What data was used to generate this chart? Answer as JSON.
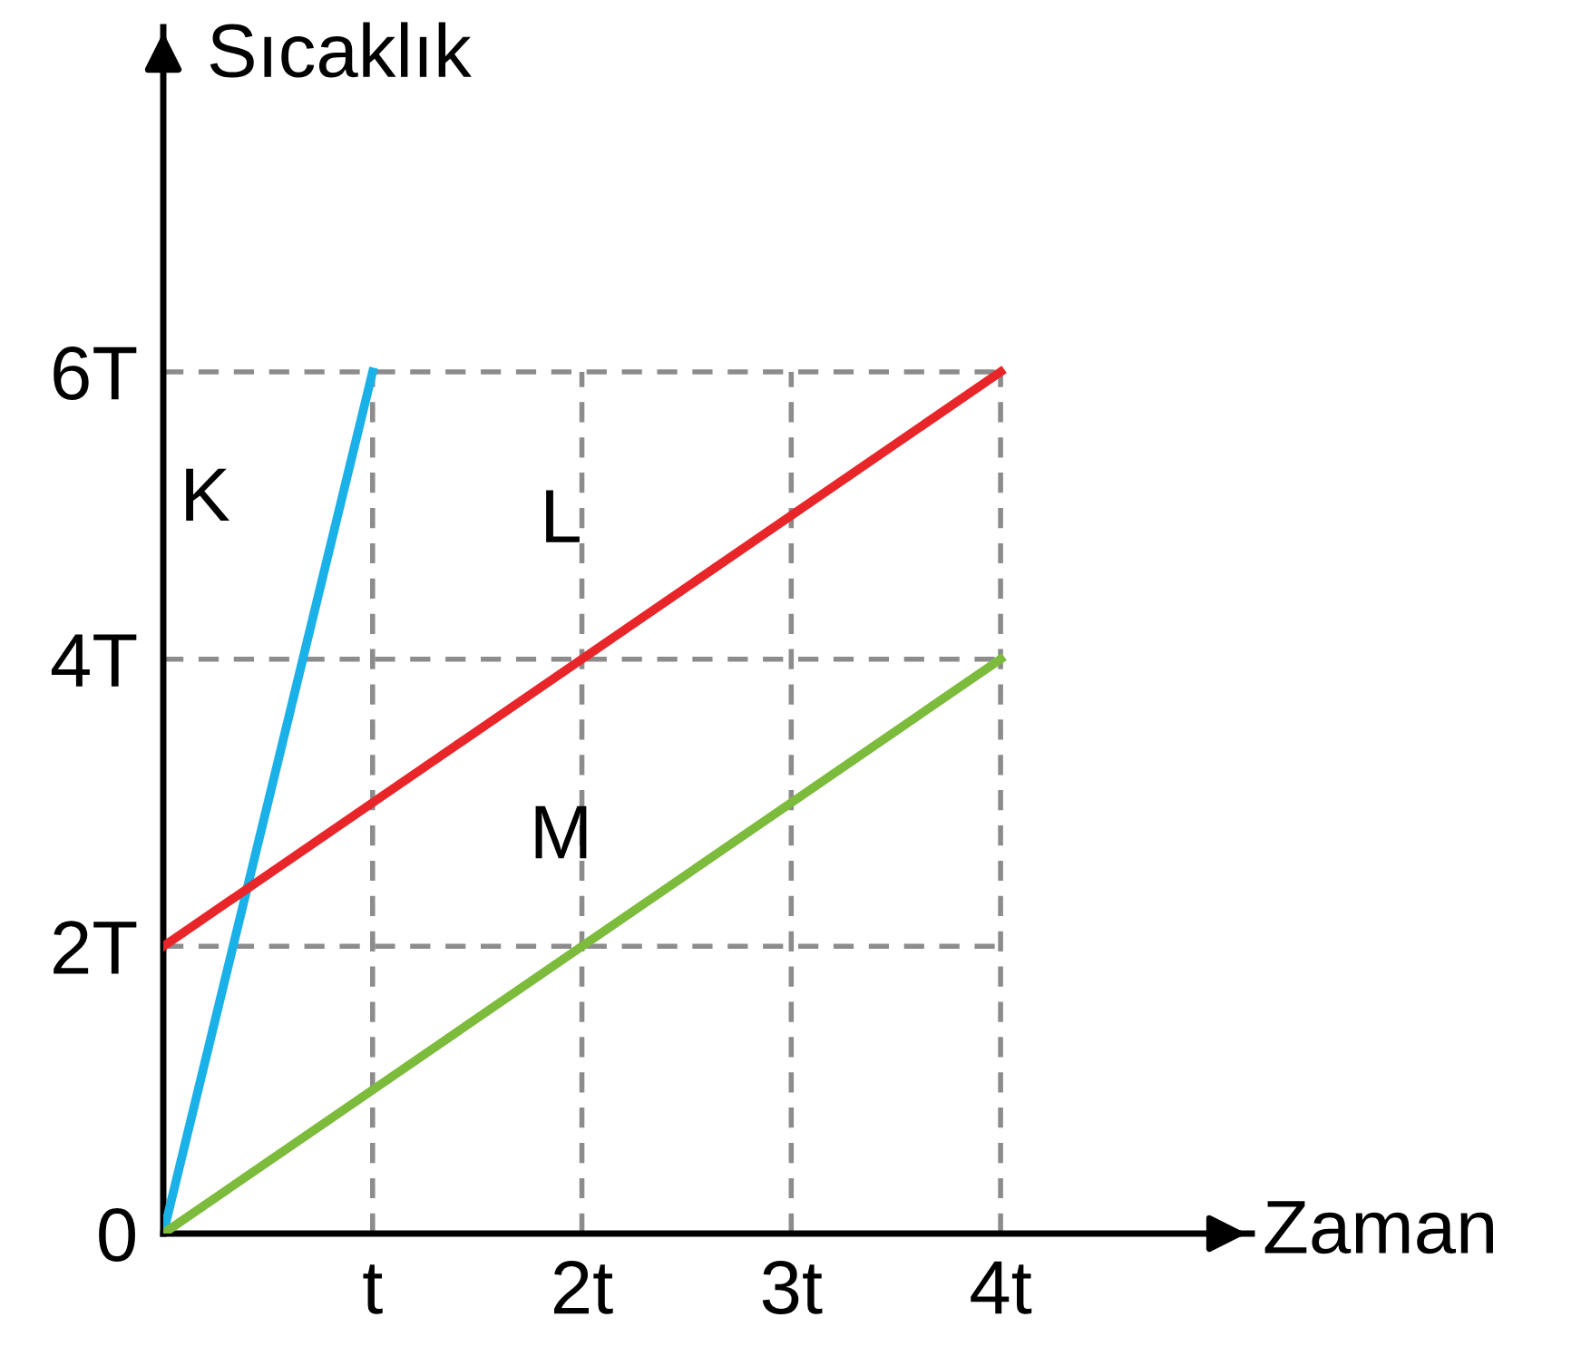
{
  "chart_data": {
    "type": "line",
    "xlabel": "Zaman",
    "ylabel": "Sıcaklık",
    "xlim": [
      0,
      5.2
    ],
    "ylim": [
      0,
      8.4
    ],
    "xticks": [
      {
        "value": 1,
        "label": "t"
      },
      {
        "value": 2,
        "label": "2t"
      },
      {
        "value": 3,
        "label": "3t"
      },
      {
        "value": 4,
        "label": "4t"
      }
    ],
    "yticks": [
      0,
      {
        "value": 2,
        "label": "2T"
      },
      {
        "value": 4,
        "label": "4T"
      },
      {
        "value": 6,
        "label": "6T"
      }
    ],
    "grid": true,
    "legend": false,
    "marker": "none",
    "line_style": "solid",
    "series": [
      {
        "name": "K",
        "color": "#1ab0e8",
        "x": [
          0,
          1
        ],
        "values": [
          0,
          6
        ]
      },
      {
        "name": "L",
        "color": "#e8262a",
        "x": [
          0,
          4
        ],
        "values": [
          2,
          6
        ]
      },
      {
        "name": "M",
        "color": "#7dbb3c",
        "x": [
          0,
          4
        ],
        "values": [
          0,
          4
        ]
      }
    ]
  }
}
